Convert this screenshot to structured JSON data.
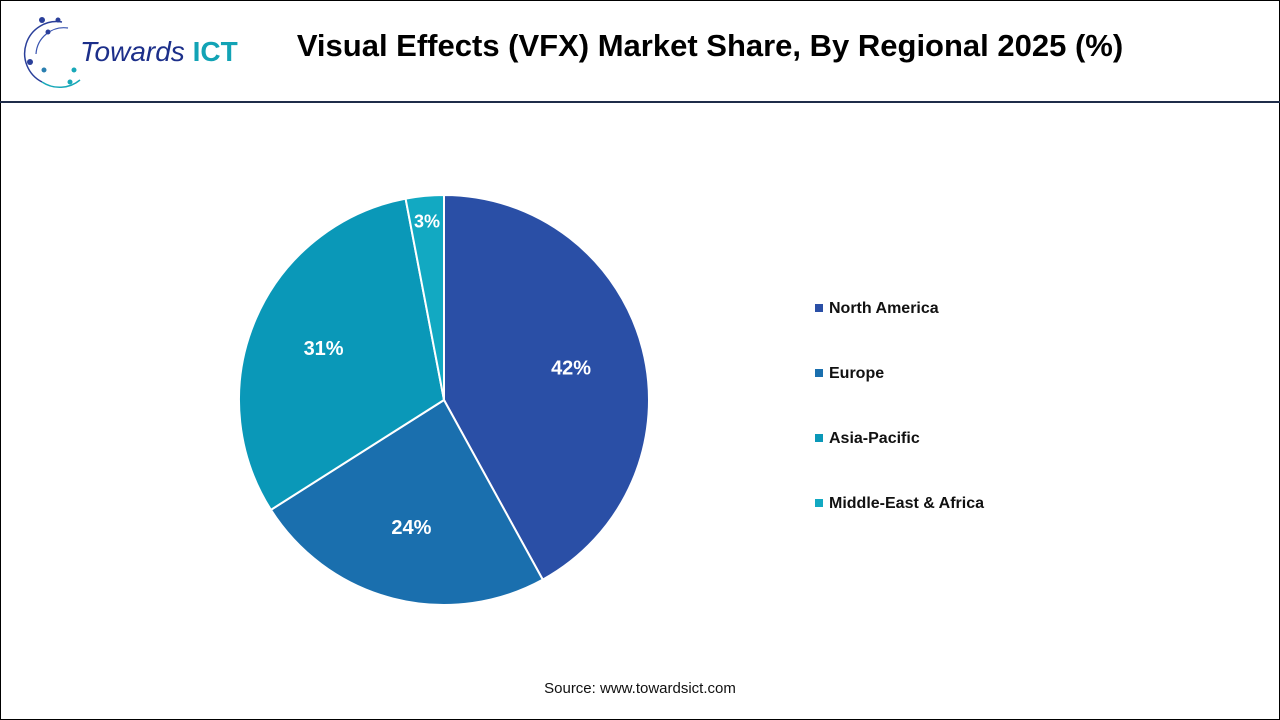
{
  "header": {
    "title": "Visual Effects (VFX) Market Share, By Regional 2025 (%)",
    "logo_main": "Towards",
    "logo_accent": "ICT"
  },
  "chart_data": {
    "type": "pie",
    "title": "Visual Effects (VFX) Market Share, By Regional 2025 (%)",
    "categories": [
      "North America",
      "Europe",
      "Asia-Pacific",
      "Middle-East & Africa"
    ],
    "values": [
      42,
      24,
      31,
      3
    ],
    "labels": [
      "42%",
      "24%",
      "31%",
      "3%"
    ],
    "colors": [
      "#2a4fa6",
      "#1a6fae",
      "#0a98b8",
      "#12a9c2"
    ],
    "legend": "right"
  },
  "footer": {
    "source": "Source: www.towardsict.com"
  }
}
